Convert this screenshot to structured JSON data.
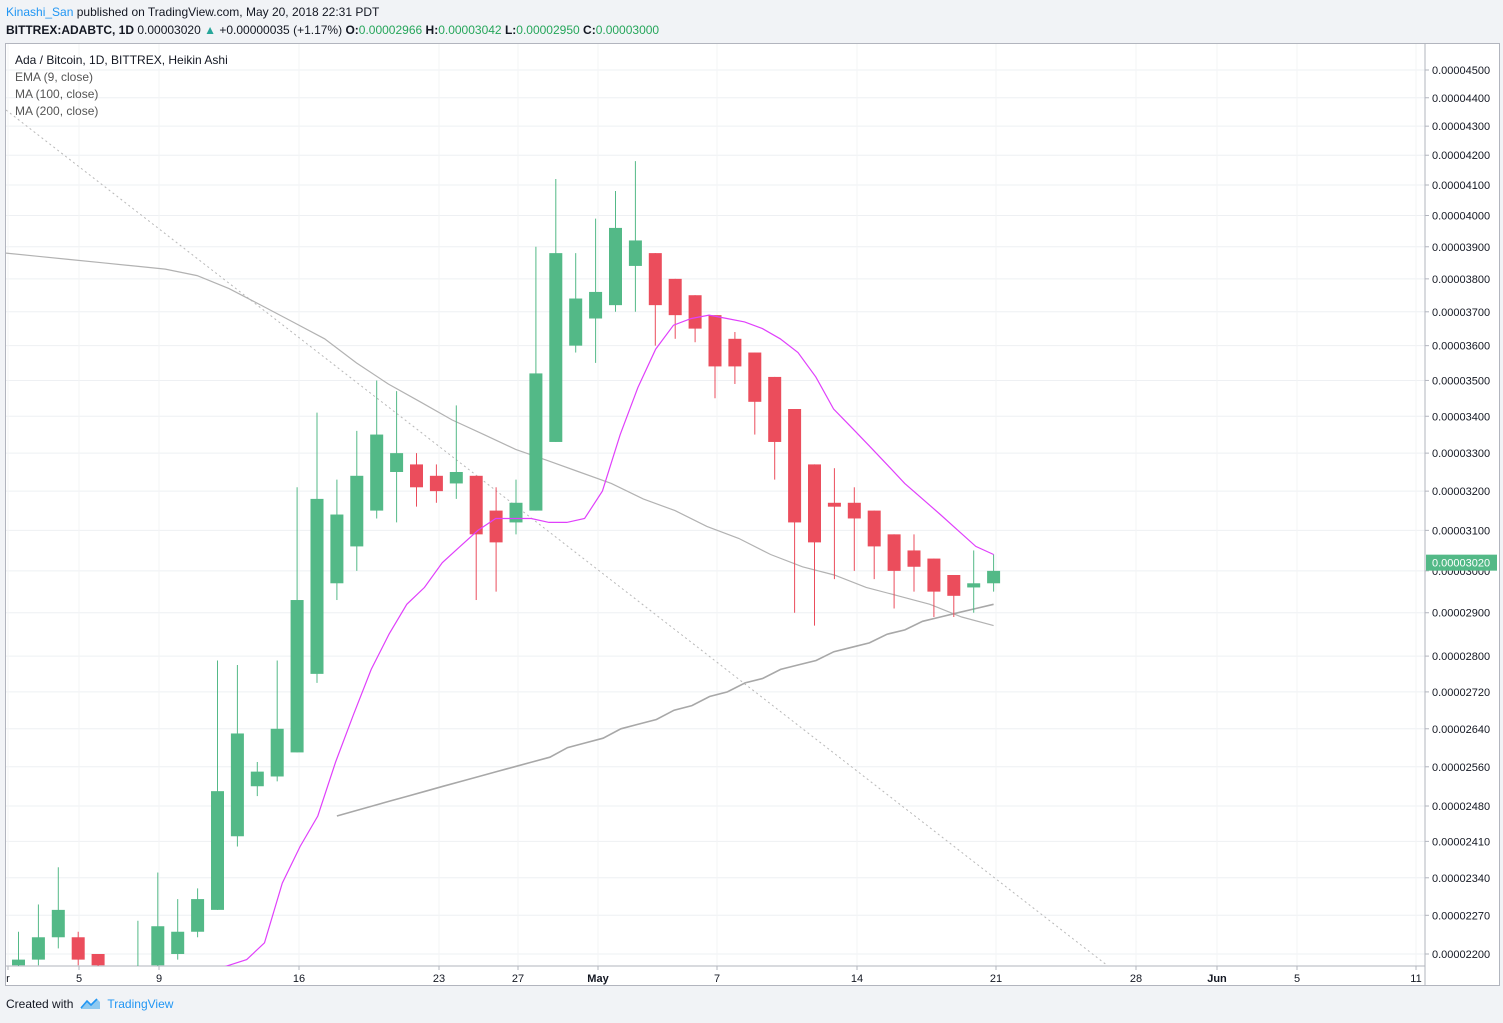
{
  "header": {
    "author": "Kinashi_San",
    "published": "published on TradingView.com, May 20, 2018 22:31 PDT"
  },
  "symbol_line": {
    "symbol": "BITTREX:ADABTC, 1D",
    "last": "0.00003020",
    "change": "+0.00000035 (+1.17%)",
    "open_label": "O:",
    "open": "0.00002966",
    "high_label": "H:",
    "high": "0.00003042",
    "low_label": "L:",
    "low": "0.00002950",
    "close_label": "C:",
    "close": "0.00003000"
  },
  "legend": {
    "title": "Ada / Bitcoin, 1D, BITTREX, Heikin Ashi",
    "indicators": [
      "EMA (9, close)",
      "MA (100, close)",
      "MA (200, close)"
    ]
  },
  "last_price_label": "0.00003020",
  "footer": {
    "created_with": "Created with",
    "brand": "TradingView"
  },
  "colors": {
    "up": "#53b987",
    "down": "#eb4d5c",
    "ema": "#e040fb",
    "ma": "#b2b2b2",
    "price_tag": "#53b987"
  },
  "chart_data": {
    "type": "candlestick",
    "title": "Ada / Bitcoin, 1D, BITTREX, Heikin Ashi",
    "y_scale": "log",
    "y_ticks": [
      "0.00004500",
      "0.00004400",
      "0.00004300",
      "0.00004200",
      "0.00004100",
      "0.00004000",
      "0.00003900",
      "0.00003800",
      "0.00003700",
      "0.00003600",
      "0.00003500",
      "0.00003400",
      "0.00003300",
      "0.00003200",
      "0.00003100",
      "0.00003000",
      "0.00002900",
      "0.00002800",
      "0.00002720",
      "0.00002640",
      "0.00002560",
      "0.00002480",
      "0.00002410",
      "0.00002340",
      "0.00002270",
      "0.00002200"
    ],
    "x_ticks": [
      "r",
      "5",
      "9",
      "16",
      "23",
      "27",
      "May",
      "7",
      "14",
      "21",
      "28",
      "Jun",
      "5",
      "11"
    ],
    "grid": true,
    "candles": [
      {
        "o": 2.18e-05,
        "h": 2.24e-05,
        "l": 2.16e-05,
        "c": 2.19e-05
      },
      {
        "o": 2.19e-05,
        "h": 2.29e-05,
        "l": 2.18e-05,
        "c": 2.23e-05
      },
      {
        "o": 2.23e-05,
        "h": 2.36e-05,
        "l": 2.21e-05,
        "c": 2.28e-05
      },
      {
        "o": 2.23e-05,
        "h": 2.24e-05,
        "l": 2.18e-05,
        "c": 2.19e-05
      },
      {
        "o": 2.2e-05,
        "h": 2.2e-05,
        "l": 2.17e-05,
        "c": 2.18e-05
      },
      {
        "o": 2.17e-05,
        "h": 2.17e-05,
        "l": 2.16e-05,
        "c": 2.16e-05
      },
      {
        "o": 2.16e-05,
        "h": 2.26e-05,
        "l": 2.15e-05,
        "c": 2.17e-05
      },
      {
        "o": 2.18e-05,
        "h": 2.35e-05,
        "l": 2.17e-05,
        "c": 2.25e-05
      },
      {
        "o": 2.2e-05,
        "h": 2.3e-05,
        "l": 2.19e-05,
        "c": 2.24e-05
      },
      {
        "o": 2.24e-05,
        "h": 2.32e-05,
        "l": 2.23e-05,
        "c": 2.3e-05
      },
      {
        "o": 2.28e-05,
        "h": 2.79e-05,
        "l": 2.28e-05,
        "c": 2.51e-05
      },
      {
        "o": 2.42e-05,
        "h": 2.78e-05,
        "l": 2.4e-05,
        "c": 2.63e-05
      },
      {
        "o": 2.52e-05,
        "h": 2.57e-05,
        "l": 2.5e-05,
        "c": 2.55e-05
      },
      {
        "o": 2.54e-05,
        "h": 2.79e-05,
        "l": 2.53e-05,
        "c": 2.64e-05
      },
      {
        "o": 2.59e-05,
        "h": 3.21e-05,
        "l": 2.59e-05,
        "c": 2.93e-05
      },
      {
        "o": 2.76e-05,
        "h": 3.41e-05,
        "l": 2.74e-05,
        "c": 3.18e-05
      },
      {
        "o": 2.97e-05,
        "h": 3.23e-05,
        "l": 2.93e-05,
        "c": 3.14e-05
      },
      {
        "o": 3.06e-05,
        "h": 3.36e-05,
        "l": 3e-05,
        "c": 3.24e-05
      },
      {
        "o": 3.15e-05,
        "h": 3.5e-05,
        "l": 3.13e-05,
        "c": 3.35e-05
      },
      {
        "o": 3.25e-05,
        "h": 3.47e-05,
        "l": 3.12e-05,
        "c": 3.3e-05
      },
      {
        "o": 3.27e-05,
        "h": 3.3e-05,
        "l": 3.16e-05,
        "c": 3.21e-05
      },
      {
        "o": 3.24e-05,
        "h": 3.27e-05,
        "l": 3.17e-05,
        "c": 3.2e-05
      },
      {
        "o": 3.22e-05,
        "h": 3.43e-05,
        "l": 3.18e-05,
        "c": 3.25e-05
      },
      {
        "o": 3.24e-05,
        "h": 3.24e-05,
        "l": 2.93e-05,
        "c": 3.09e-05
      },
      {
        "o": 3.15e-05,
        "h": 3.21e-05,
        "l": 2.95e-05,
        "c": 3.07e-05
      },
      {
        "o": 3.12e-05,
        "h": 3.23e-05,
        "l": 3.09e-05,
        "c": 3.17e-05
      },
      {
        "o": 3.15e-05,
        "h": 3.9e-05,
        "l": 3.15e-05,
        "c": 3.52e-05
      },
      {
        "o": 3.33e-05,
        "h": 4.12e-05,
        "l": 3.33e-05,
        "c": 3.88e-05
      },
      {
        "o": 3.6e-05,
        "h": 3.88e-05,
        "l": 3.58e-05,
        "c": 3.74e-05
      },
      {
        "o": 3.68e-05,
        "h": 3.99e-05,
        "l": 3.55e-05,
        "c": 3.76e-05
      },
      {
        "o": 3.72e-05,
        "h": 4.08e-05,
        "l": 3.7e-05,
        "c": 3.96e-05
      },
      {
        "o": 3.84e-05,
        "h": 4.18e-05,
        "l": 3.7e-05,
        "c": 3.92e-05
      },
      {
        "o": 3.88e-05,
        "h": 3.88e-05,
        "l": 3.6e-05,
        "c": 3.72e-05
      },
      {
        "o": 3.8e-05,
        "h": 3.8e-05,
        "l": 3.62e-05,
        "c": 3.69e-05
      },
      {
        "o": 3.75e-05,
        "h": 3.75e-05,
        "l": 3.61e-05,
        "c": 3.65e-05
      },
      {
        "o": 3.69e-05,
        "h": 3.69e-05,
        "l": 3.45e-05,
        "c": 3.54e-05
      },
      {
        "o": 3.62e-05,
        "h": 3.64e-05,
        "l": 3.49e-05,
        "c": 3.54e-05
      },
      {
        "o": 3.58e-05,
        "h": 3.58e-05,
        "l": 3.35e-05,
        "c": 3.44e-05
      },
      {
        "o": 3.51e-05,
        "h": 3.51e-05,
        "l": 3.23e-05,
        "c": 3.33e-05
      },
      {
        "o": 3.42e-05,
        "h": 3.42e-05,
        "l": 2.9e-05,
        "c": 3.12e-05
      },
      {
        "o": 3.27e-05,
        "h": 3.27e-05,
        "l": 2.87e-05,
        "c": 3.07e-05
      },
      {
        "o": 3.17e-05,
        "h": 3.26e-05,
        "l": 2.98e-05,
        "c": 3.16e-05
      },
      {
        "o": 3.17e-05,
        "h": 3.21e-05,
        "l": 3e-05,
        "c": 3.13e-05
      },
      {
        "o": 3.15e-05,
        "h": 3.15e-05,
        "l": 2.98e-05,
        "c": 3.06e-05
      },
      {
        "o": 3.09e-05,
        "h": 3.09e-05,
        "l": 2.91e-05,
        "c": 3e-05
      },
      {
        "o": 3.05e-05,
        "h": 3.09e-05,
        "l": 2.95e-05,
        "c": 3.01e-05
      },
      {
        "o": 3.03e-05,
        "h": 3.03e-05,
        "l": 2.89e-05,
        "c": 2.95e-05
      },
      {
        "o": 2.99e-05,
        "h": 2.99e-05,
        "l": 2.89e-05,
        "c": 2.94e-05
      },
      {
        "o": 2.96e-05,
        "h": 3.05e-05,
        "l": 2.9e-05,
        "c": 2.97e-05
      },
      {
        "o": 2.97e-05,
        "h": 3.04e-05,
        "l": 2.95e-05,
        "c": 3e-05
      }
    ],
    "ema9": [
      2.16e-05,
      2.16e-05,
      2.17e-05,
      2.17e-05,
      2.18e-05,
      2.19e-05,
      2.22e-05,
      2.33e-05,
      2.4e-05,
      2.46e-05,
      2.57e-05,
      2.67e-05,
      2.77e-05,
      2.85e-05,
      2.92e-05,
      2.96e-05,
      3.02e-05,
      3.06e-05,
      3.1e-05,
      3.13e-05,
      3.13e-05,
      3.13e-05,
      3.12e-05,
      3.12e-05,
      3.13e-05,
      3.2e-05,
      3.35e-05,
      3.48e-05,
      3.59e-05,
      3.66e-05,
      3.68e-05,
      3.69e-05,
      3.68e-05,
      3.67e-05,
      3.65e-05,
      3.62e-05,
      3.58e-05,
      3.51e-05,
      3.42e-05,
      3.37e-05,
      3.32e-05,
      3.27e-05,
      3.22e-05,
      3.18e-05,
      3.14e-05,
      3.1e-05,
      3.06e-05,
      3.04e-05
    ],
    "ema9_start": 7,
    "ma100": [
      3.88e-05,
      3.87e-05,
      3.86e-05,
      3.85e-05,
      3.84e-05,
      3.83e-05,
      3.81e-05,
      3.77e-05,
      3.72e-05,
      3.67e-05,
      3.62e-05,
      3.55e-05,
      3.49e-05,
      3.44e-05,
      3.39e-05,
      3.35e-05,
      3.31e-05,
      3.28e-05,
      3.25e-05,
      3.22e-05,
      3.18e-05,
      3.15e-05,
      3.11e-05,
      3.08e-05,
      3.04e-05,
      3.01e-05,
      2.99e-05,
      2.96e-05,
      2.94e-05,
      2.92e-05,
      2.89e-05,
      2.87e-05
    ],
    "ma100_start": 0,
    "ma200": [
      2.46e-05,
      2.47e-05,
      2.48e-05,
      2.49e-05,
      2.5e-05,
      2.51e-05,
      2.52e-05,
      2.53e-05,
      2.54e-05,
      2.55e-05,
      2.56e-05,
      2.57e-05,
      2.58e-05,
      2.6e-05,
      2.61e-05,
      2.62e-05,
      2.64e-05,
      2.65e-05,
      2.66e-05,
      2.68e-05,
      2.69e-05,
      2.71e-05,
      2.72e-05,
      2.74e-05,
      2.75e-05,
      2.77e-05,
      2.78e-05,
      2.79e-05,
      2.81e-05,
      2.82e-05,
      2.83e-05,
      2.85e-05,
      2.86e-05,
      2.88e-05,
      2.89e-05,
      2.9e-05,
      2.91e-05,
      2.92e-05
    ],
    "ma200_start": 16
  }
}
